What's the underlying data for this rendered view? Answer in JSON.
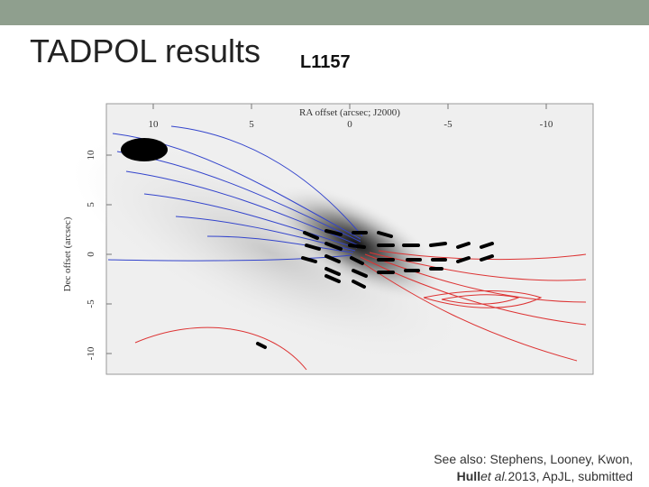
{
  "slide": {
    "title": "TADPOL results",
    "subtitle": "L1157",
    "figure": {
      "x_axis_label": "RA offset (arcsec; J2000)",
      "y_axis_label": "Dec offset (arcsec)",
      "x_ticks": [
        "10",
        "5",
        "0",
        "-5",
        "-10"
      ],
      "y_ticks": [
        "10",
        "5",
        "0",
        "-5",
        "-10"
      ]
    },
    "footnote": {
      "line1": "See also: Stephens, Looney, Kwon,",
      "line2": {
        "bold": "Hull",
        "italic": "et al.",
        "rest": "2013, ApJL, submitted"
      }
    }
  }
}
